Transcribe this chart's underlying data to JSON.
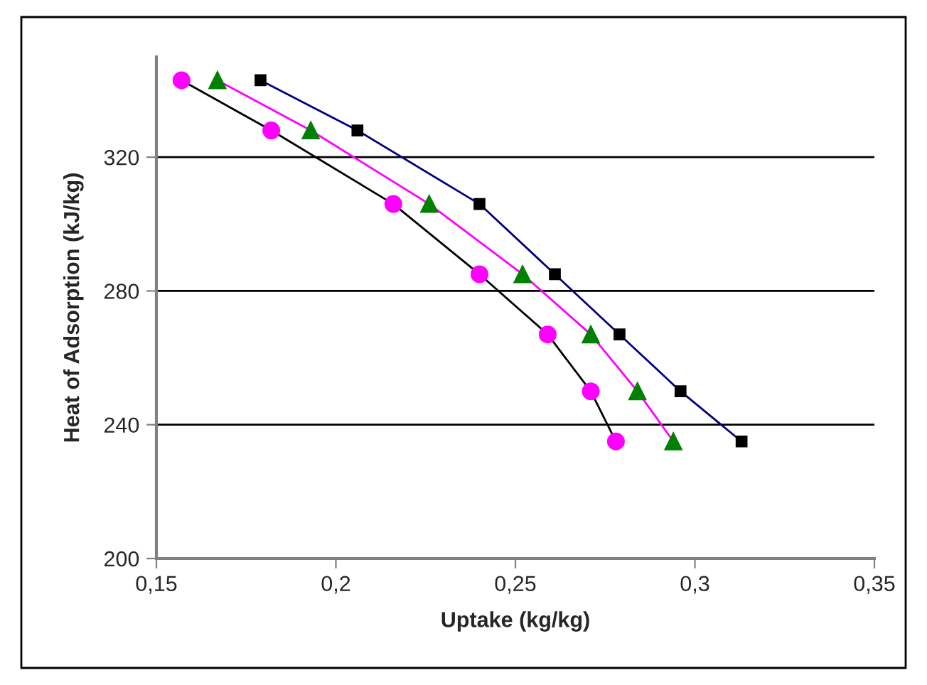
{
  "chart_data": {
    "type": "line",
    "xlabel": "Uptake (kg/kg)",
    "ylabel": "Heat of Adsorption (kJ/kg)",
    "xlim": [
      0.15,
      0.35
    ],
    "ylim": [
      200,
      350
    ],
    "xticks": [
      {
        "value": 0.15,
        "label": "0,15"
      },
      {
        "value": 0.2,
        "label": "0,2"
      },
      {
        "value": 0.25,
        "label": "0,25"
      },
      {
        "value": 0.3,
        "label": "0,3"
      },
      {
        "value": 0.35,
        "label": "0,35"
      }
    ],
    "yticks": [
      200,
      240,
      280,
      320
    ],
    "grid": "y",
    "legend": false,
    "line_style": "solid",
    "series": [
      {
        "color": "#000000",
        "marker": "circle",
        "colors": [
          "#ff00ff",
          "#ff00ff",
          "#ff00ff",
          "#ff00ff",
          "#ff00ff",
          "#ff00ff",
          "#ff00ff"
        ],
        "x": [
          0.157,
          0.182,
          0.216,
          0.24,
          0.259,
          0.271,
          0.278
        ],
        "values": [
          343,
          328,
          306,
          285,
          267,
          250,
          235
        ]
      },
      {
        "color": "#ff00ff",
        "marker": "triangle",
        "colors": [
          "#008000",
          "#008000",
          "#008000",
          "#008000",
          "#008000",
          "#008000",
          "#008000"
        ],
        "x": [
          0.167,
          0.193,
          0.226,
          0.252,
          0.271,
          0.284,
          0.294
        ],
        "values": [
          343,
          328,
          306,
          285,
          267,
          250,
          235
        ]
      },
      {
        "color": "#000080",
        "marker": "square",
        "colors": [
          "#000000",
          "#000000",
          "#000000",
          "#000000",
          "#000000",
          "#000000",
          "#000000"
        ],
        "x": [
          0.179,
          0.206,
          0.24,
          0.261,
          0.279,
          0.296,
          0.313
        ],
        "values": [
          343,
          328,
          306,
          285,
          267,
          250,
          235
        ]
      }
    ]
  }
}
